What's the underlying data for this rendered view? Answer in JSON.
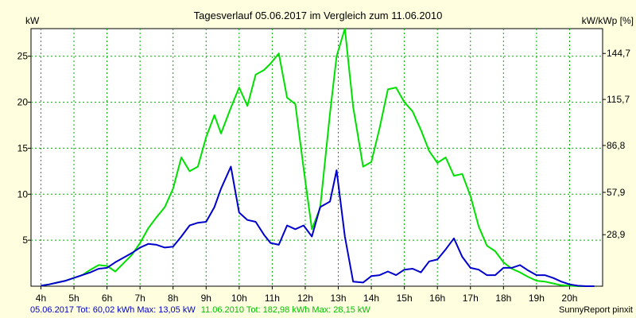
{
  "chart_data": {
    "type": "line",
    "title": "Tagesverlauf 05.06.2017 im Vergleich zum 11.06.2010",
    "ylabel_left": "kW",
    "ylabel_right": "kW/kWp [%]",
    "ylim": [
      0,
      28
    ],
    "xlim": [
      3.7,
      21.0
    ],
    "y_ticks_left": [
      5,
      10,
      15,
      20,
      25
    ],
    "y_ticks_right": [
      {
        "value": 28.9,
        "label": "28,9",
        "at_kw": 5.6
      },
      {
        "value": 57.9,
        "label": "57,9",
        "at_kw": 10.2
      },
      {
        "value": 86.8,
        "label": "86,8",
        "at_kw": 15.3
      },
      {
        "value": 115.7,
        "label": "115,7",
        "at_kw": 20.3
      },
      {
        "value": 144.7,
        "label": "144,7",
        "at_kw": 25.3
      }
    ],
    "x_ticks": [
      {
        "value": 4,
        "label": "4h"
      },
      {
        "value": 5,
        "label": "5h"
      },
      {
        "value": 6,
        "label": "6h"
      },
      {
        "value": 7,
        "label": "7h"
      },
      {
        "value": 8,
        "label": "8h"
      },
      {
        "value": 9,
        "label": "9h"
      },
      {
        "value": 10,
        "label": "10h"
      },
      {
        "value": 11,
        "label": "11h"
      },
      {
        "value": 12,
        "label": "12h"
      },
      {
        "value": 13,
        "label": "13h"
      },
      {
        "value": 14,
        "label": "14h"
      },
      {
        "value": 15,
        "label": "15h"
      },
      {
        "value": 16,
        "label": "16h"
      },
      {
        "value": 17,
        "label": "17h"
      },
      {
        "value": 18,
        "label": "18h"
      },
      {
        "value": 19,
        "label": "19h"
      },
      {
        "value": 20,
        "label": "20h"
      }
    ],
    "grid": true,
    "series": [
      {
        "name": "05.06.2017",
        "color": "#0000cc",
        "x": [
          4.0,
          4.25,
          4.5,
          4.75,
          5.0,
          5.25,
          5.5,
          5.75,
          6.0,
          6.25,
          6.5,
          6.75,
          7.0,
          7.25,
          7.5,
          7.75,
          8.0,
          8.25,
          8.5,
          8.75,
          9.0,
          9.25,
          9.45,
          9.75,
          10.0,
          10.25,
          10.5,
          10.75,
          10.95,
          11.2,
          11.45,
          11.7,
          11.95,
          12.2,
          12.45,
          12.75,
          12.95,
          13.2,
          13.45,
          13.75,
          14.0,
          14.25,
          14.5,
          14.75,
          15.0,
          15.25,
          15.5,
          15.75,
          16.0,
          16.25,
          16.5,
          16.75,
          17.0,
          17.25,
          17.5,
          17.75,
          18.0,
          18.25,
          18.5,
          18.75,
          19.0,
          19.25,
          19.5,
          19.75,
          20.0,
          20.25,
          20.5,
          20.75
        ],
        "values": [
          0.05,
          0.2,
          0.4,
          0.6,
          0.9,
          1.2,
          1.5,
          1.9,
          2.0,
          2.6,
          3.1,
          3.6,
          4.2,
          4.6,
          4.5,
          4.2,
          4.3,
          5.4,
          6.6,
          6.9,
          7.0,
          8.6,
          10.6,
          13.0,
          8.0,
          7.2,
          7.0,
          5.6,
          4.7,
          4.5,
          6.6,
          6.2,
          6.6,
          5.4,
          8.6,
          9.2,
          12.6,
          5.4,
          0.5,
          0.4,
          1.1,
          1.2,
          1.6,
          1.2,
          1.8,
          1.9,
          1.5,
          2.7,
          2.9,
          4.0,
          5.2,
          3.2,
          2.0,
          1.8,
          1.2,
          1.2,
          2.0,
          2.0,
          2.3,
          1.7,
          1.2,
          1.2,
          0.9,
          0.5,
          0.2,
          0.05,
          0.0,
          0.0
        ]
      },
      {
        "name": "11.06.2010",
        "color": "#00e000",
        "x": [
          4.0,
          4.25,
          4.5,
          4.75,
          5.0,
          5.25,
          5.5,
          5.75,
          6.0,
          6.25,
          6.5,
          6.75,
          7.0,
          7.25,
          7.5,
          7.75,
          8.0,
          8.25,
          8.5,
          8.75,
          9.0,
          9.25,
          9.45,
          9.75,
          10.0,
          10.25,
          10.5,
          10.75,
          10.95,
          11.2,
          11.45,
          11.7,
          11.95,
          12.2,
          12.45,
          12.75,
          12.95,
          13.2,
          13.45,
          13.75,
          14.0,
          14.25,
          14.5,
          14.75,
          15.0,
          15.25,
          15.5,
          15.75,
          16.0,
          16.25,
          16.5,
          16.75,
          17.0,
          17.25,
          17.5,
          17.75,
          18.0,
          18.25,
          18.5,
          18.75,
          19.0,
          19.25,
          19.5,
          19.75,
          20.0,
          20.25,
          20.5,
          20.75
        ],
        "values": [
          0.05,
          0.2,
          0.4,
          0.6,
          0.9,
          1.2,
          1.8,
          2.3,
          2.2,
          1.6,
          2.5,
          3.4,
          4.7,
          6.3,
          7.5,
          8.6,
          10.6,
          14.0,
          12.5,
          13.0,
          16.2,
          18.6,
          16.6,
          19.4,
          21.6,
          19.6,
          23.0,
          23.5,
          24.2,
          25.3,
          20.5,
          19.8,
          12.8,
          6.2,
          8.5,
          18.8,
          25.0,
          28.0,
          19.5,
          13.0,
          13.5,
          17.2,
          21.4,
          21.6,
          20.0,
          19.0,
          17.0,
          14.7,
          13.4,
          14.0,
          12.0,
          12.2,
          9.8,
          6.5,
          4.4,
          3.8,
          2.6,
          1.9,
          1.5,
          1.0,
          0.6,
          0.5,
          0.3,
          0.1,
          0.05,
          0.0,
          0.0,
          0.0
        ]
      }
    ],
    "footer": {
      "series1_summary": "05.06.2017 Tot: 60,02 kWh Max: 13,05 kW",
      "series2_summary": "11.06.2010 Tot: 182,98 kWh Max: 28,15 kW",
      "series1_color": "#0000cc",
      "series2_color": "#00c000",
      "credit": "SunnyReport pinxit"
    },
    "colors": {
      "background": "#ffffe0",
      "plot_background": "#ffffff",
      "grid": "#00b000"
    }
  }
}
